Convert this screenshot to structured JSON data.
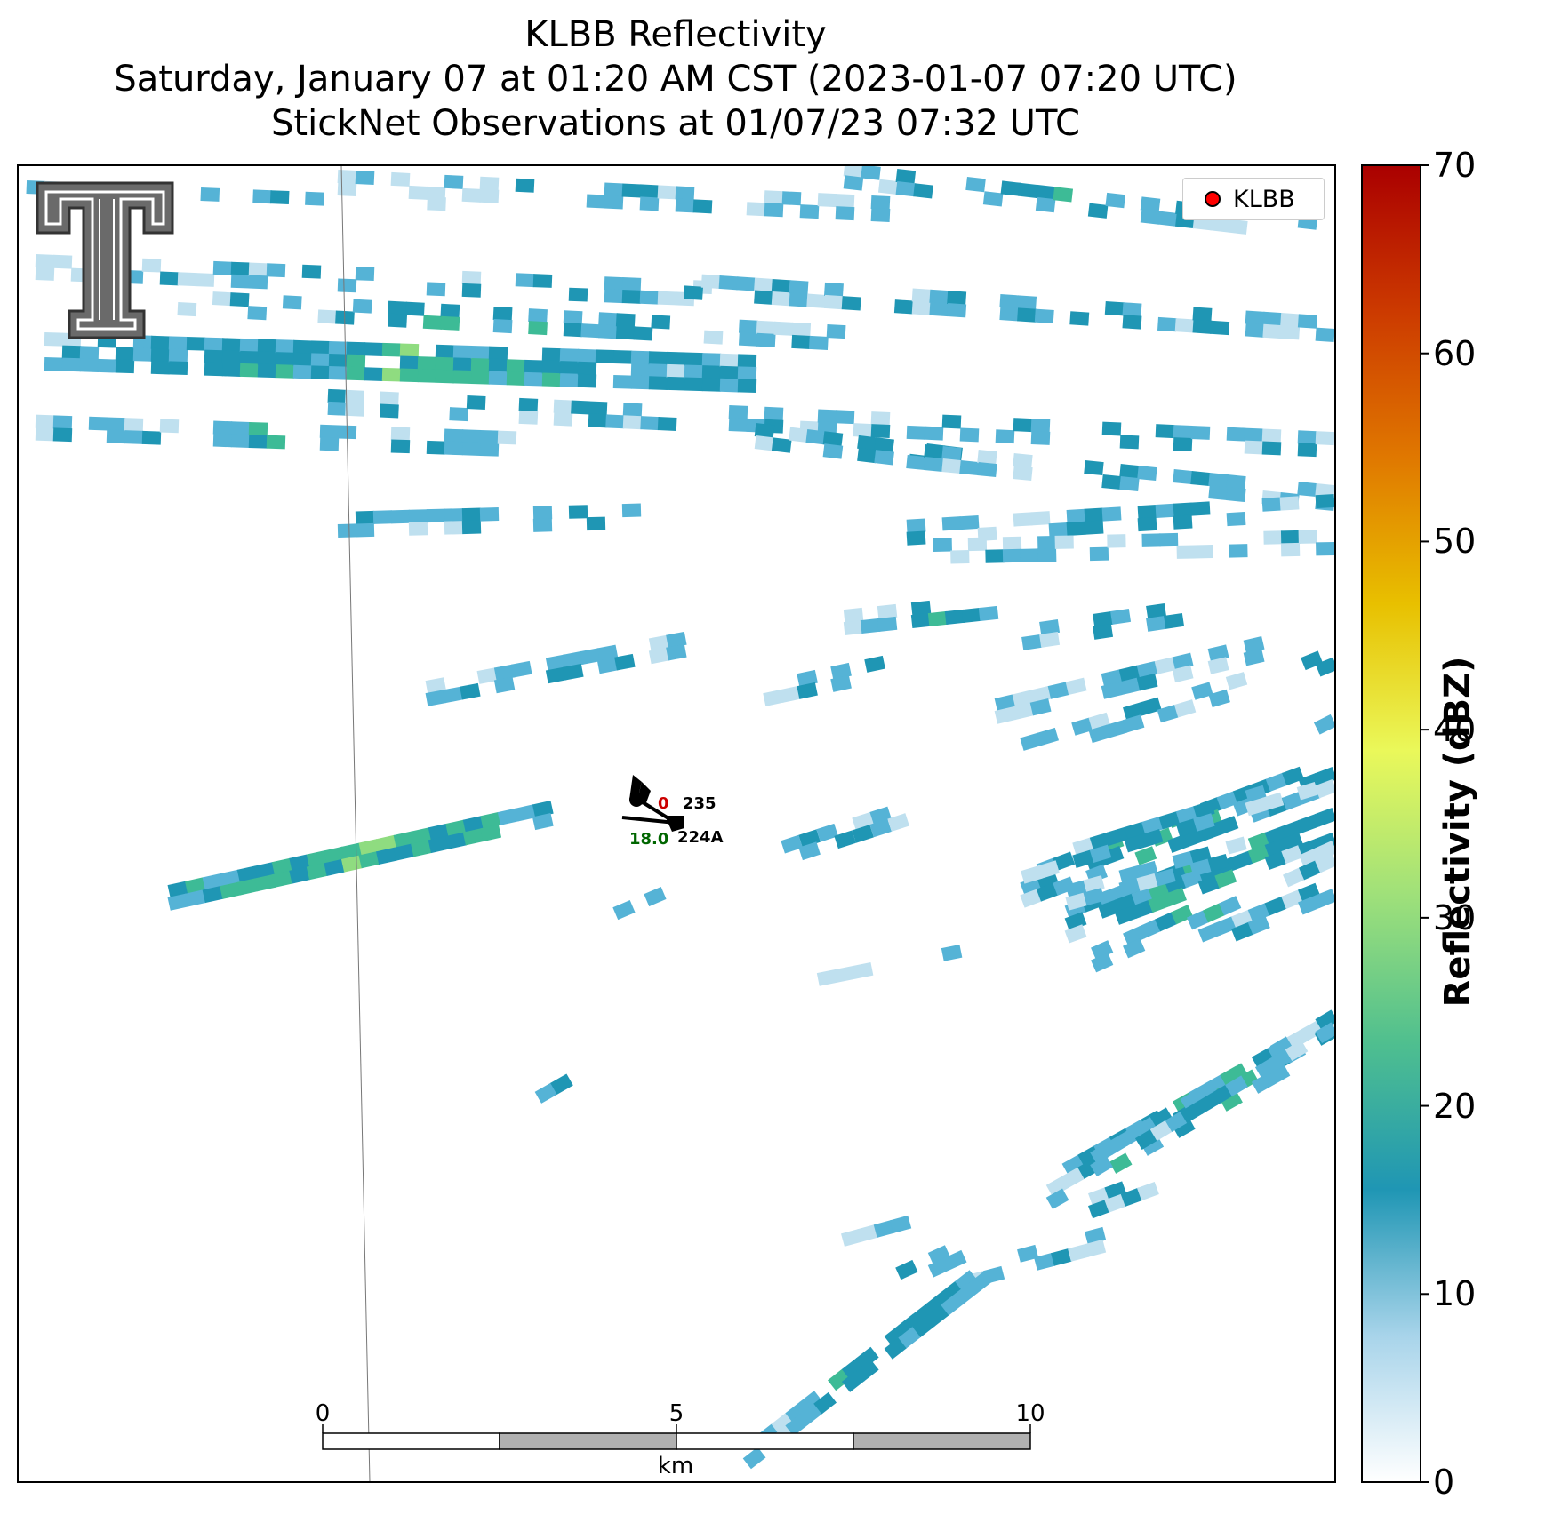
{
  "title": {
    "line1": "KLBB Reflectivity",
    "line2": "Saturday, January 07 at 01:20 AM CST (2023-01-07 07:20 UTC)",
    "line3": "StickNet Observations at 01/07/23 07:32 UTC"
  },
  "legend": {
    "label": "KLBB",
    "marker_color": "#ff0000"
  },
  "colorbar": {
    "title": "Reflectivity (dBZ)",
    "ticks": [
      "0",
      "10",
      "20",
      "30",
      "40",
      "50",
      "60",
      "70"
    ],
    "stops": [
      "#ffffff",
      "#a8d4ea",
      "#1f96b4",
      "#4fbf8f",
      "#9ee07a",
      "#eaf85a",
      "#e8c000",
      "#e07800",
      "#cc3a00",
      "#aa0000"
    ]
  },
  "scale_bar": {
    "ticks": [
      "0",
      "5",
      "10"
    ],
    "unit": "km"
  },
  "station": {
    "id_primary": "235",
    "id_secondary": "224A",
    "temp": "0",
    "dewpoint": "18.0"
  },
  "logo": {
    "name": "texas-tech-double-t-logo",
    "text": "T"
  },
  "colors": {
    "light": "#bfe0ef",
    "cyan": "#55b3d6",
    "teal": "#1f96b4",
    "green": "#3dbb96",
    "lightgreen": "#8fdc80",
    "yellowgreen": "#d6f46a"
  }
}
